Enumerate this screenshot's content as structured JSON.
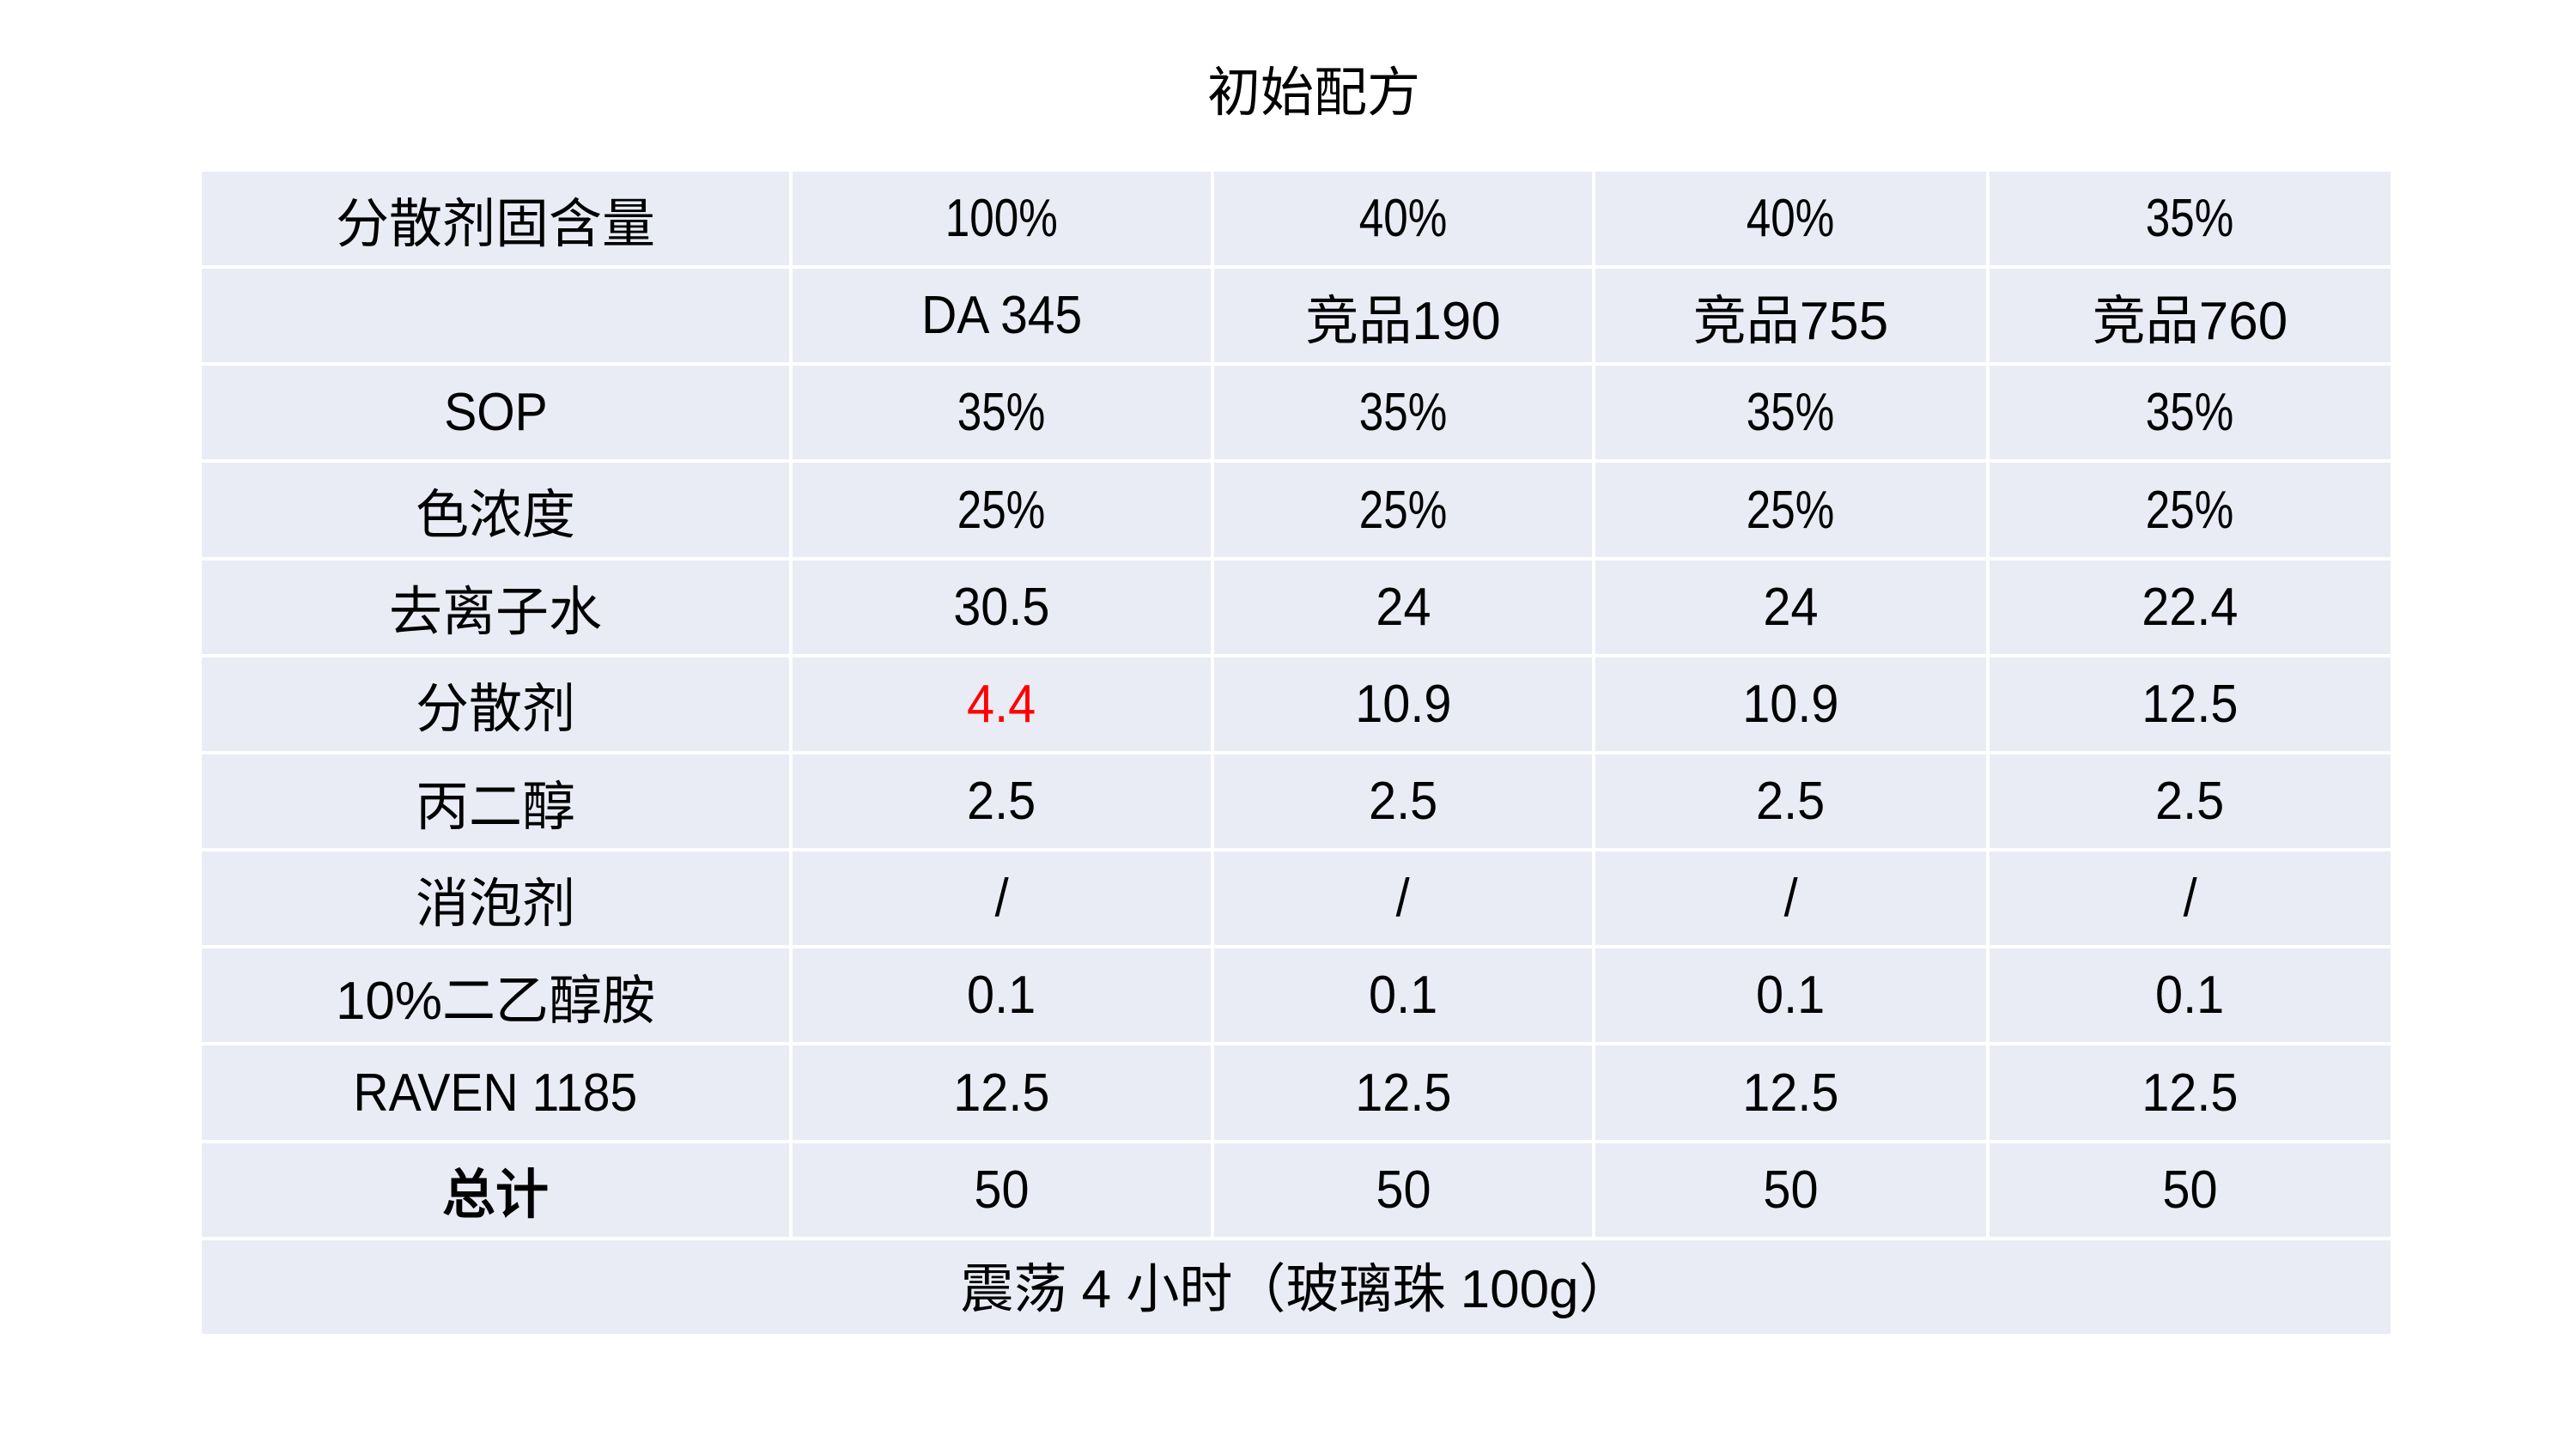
{
  "title": "初始配方",
  "table": {
    "rows": [
      {
        "label": "分散剂固含量",
        "values": [
          "100%",
          "40%",
          "40%",
          "35%"
        ]
      },
      {
        "label": "",
        "values": [
          "DA 345",
          "竞品190",
          "竞品755",
          "竞品760"
        ]
      },
      {
        "label": "SOP",
        "values": [
          "35%",
          "35%",
          "35%",
          "35%"
        ]
      },
      {
        "label": "色浓度",
        "values": [
          "25%",
          "25%",
          "25%",
          "25%"
        ]
      },
      {
        "label": "去离子水",
        "values": [
          "30.5",
          "24",
          "24",
          "22.4"
        ]
      },
      {
        "label": "分散剂",
        "values": [
          "4.4",
          "10.9",
          "10.9",
          "12.5"
        ],
        "highlight": [
          0
        ]
      },
      {
        "label": "丙二醇",
        "values": [
          "2.5",
          "2.5",
          "2.5",
          "2.5"
        ]
      },
      {
        "label": "消泡剂",
        "values": [
          "/",
          "/",
          "/",
          "/"
        ]
      },
      {
        "label": "10%二乙醇胺",
        "values": [
          "0.1",
          "0.1",
          "0.1",
          "0.1"
        ]
      },
      {
        "label": "RAVEN 1185",
        "values": [
          "12.5",
          "12.5",
          "12.5",
          "12.5"
        ]
      },
      {
        "label": "总计",
        "values": [
          "50",
          "50",
          "50",
          "50"
        ],
        "bold_label": true
      }
    ],
    "footer": "震荡 4 小时（玻璃珠 100g）"
  },
  "colors": {
    "page_bg": "#FFFFFF",
    "cell_bg": "#E9EBF5",
    "text": "#000000",
    "highlight_text": "#FF0000"
  }
}
